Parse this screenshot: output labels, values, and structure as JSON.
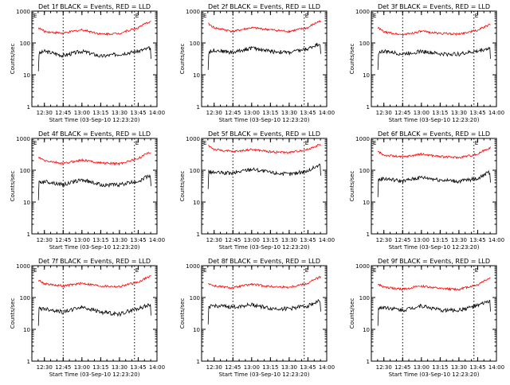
{
  "figure": {
    "x_tick_labels": [
      "12:30",
      "12:45",
      "13:00",
      "13:15",
      "13:30",
      "13:45",
      "14:00"
    ],
    "x_label": "Start Time (03-Sep-10 12:23:20)",
    "y_label": "Counts/sec",
    "y_tick_labels": [
      "1",
      "10",
      "100",
      "1000"
    ],
    "marker_label": "E",
    "colors": {
      "events": "#000000",
      "lld": "#ff0000",
      "axes": "#000000",
      "background": "#ffffff"
    }
  },
  "chart_data": [
    {
      "type": "line",
      "title": "Det 1f BLACK = Events, RED = LLD",
      "xlim": [
        12.333,
        14.0
      ],
      "ylim": [
        1,
        1000
      ],
      "y_scale": "log",
      "markers_x": [
        12.75,
        13.7
      ],
      "series": [
        {
          "name": "Events",
          "color": "#000000",
          "x": [
            12.42,
            12.5,
            12.75,
            13.0,
            13.25,
            13.5,
            13.75,
            13.92
          ],
          "values": [
            45,
            55,
            40,
            55,
            38,
            45,
            55,
            70
          ]
        },
        {
          "name": "LLD",
          "color": "#ff0000",
          "x": [
            12.42,
            12.5,
            12.75,
            13.0,
            13.25,
            13.5,
            13.75,
            13.92
          ],
          "values": [
            300,
            230,
            200,
            260,
            190,
            200,
            300,
            480
          ]
        }
      ]
    },
    {
      "type": "line",
      "title": "Det 2f BLACK = Events, RED = LLD",
      "xlim": [
        12.333,
        14.0
      ],
      "ylim": [
        1,
        1000
      ],
      "y_scale": "log",
      "markers_x": [
        12.75,
        13.7
      ],
      "series": [
        {
          "name": "Events",
          "color": "#000000",
          "x": [
            12.42,
            12.5,
            12.75,
            13.0,
            13.25,
            13.5,
            13.75,
            13.92
          ],
          "values": [
            50,
            60,
            50,
            70,
            55,
            50,
            65,
            100
          ]
        },
        {
          "name": "LLD",
          "color": "#ff0000",
          "x": [
            12.42,
            12.5,
            12.75,
            13.0,
            13.25,
            13.5,
            13.75,
            13.92
          ],
          "values": [
            400,
            300,
            230,
            300,
            260,
            230,
            300,
            500
          ]
        }
      ]
    },
    {
      "type": "line",
      "title": "Det 3f BLACK = Events, RED = LLD",
      "xlim": [
        12.333,
        14.0
      ],
      "ylim": [
        1,
        1000
      ],
      "y_scale": "log",
      "markers_x": [
        12.75,
        13.7
      ],
      "series": [
        {
          "name": "Events",
          "color": "#000000",
          "x": [
            12.42,
            12.5,
            12.75,
            13.0,
            13.25,
            13.5,
            13.75,
            13.92
          ],
          "values": [
            50,
            55,
            45,
            55,
            45,
            45,
            55,
            70
          ]
        },
        {
          "name": "LLD",
          "color": "#ff0000",
          "x": [
            12.42,
            12.5,
            12.75,
            13.0,
            13.25,
            13.5,
            13.75,
            13.92
          ],
          "values": [
            300,
            220,
            180,
            230,
            200,
            190,
            250,
            380
          ]
        }
      ]
    },
    {
      "type": "line",
      "title": "Det 4f BLACK = Events, RED = LLD",
      "xlim": [
        12.333,
        14.0
      ],
      "ylim": [
        1,
        1000
      ],
      "y_scale": "log",
      "markers_x": [
        12.75,
        13.7
      ],
      "series": [
        {
          "name": "Events",
          "color": "#000000",
          "x": [
            12.42,
            12.5,
            12.75,
            13.0,
            13.25,
            13.5,
            13.75,
            13.92
          ],
          "values": [
            40,
            45,
            35,
            50,
            35,
            35,
            45,
            70
          ]
        },
        {
          "name": "LLD",
          "color": "#ff0000",
          "x": [
            12.42,
            12.5,
            12.75,
            13.0,
            13.25,
            13.5,
            13.75,
            13.92
          ],
          "values": [
            250,
            200,
            160,
            210,
            170,
            160,
            230,
            380
          ]
        }
      ]
    },
    {
      "type": "line",
      "title": "Det 5f BLACK = Events, RED = LLD",
      "xlim": [
        12.333,
        14.0
      ],
      "ylim": [
        1,
        1000
      ],
      "y_scale": "log",
      "markers_x": [
        12.75,
        13.7
      ],
      "series": [
        {
          "name": "Events",
          "color": "#000000",
          "x": [
            12.42,
            12.5,
            12.75,
            13.0,
            13.25,
            13.5,
            13.75,
            13.92
          ],
          "values": [
            90,
            85,
            80,
            110,
            85,
            75,
            95,
            150
          ]
        },
        {
          "name": "LLD",
          "color": "#ff0000",
          "x": [
            12.42,
            12.5,
            12.75,
            13.0,
            13.25,
            13.5,
            13.75,
            13.92
          ],
          "values": [
            600,
            450,
            380,
            450,
            380,
            360,
            450,
            650
          ]
        }
      ]
    },
    {
      "type": "line",
      "title": "Det 6f BLACK = Events, RED = LLD",
      "xlim": [
        12.333,
        14.0
      ],
      "ylim": [
        1,
        1000
      ],
      "y_scale": "log",
      "markers_x": [
        12.75,
        13.7
      ],
      "series": [
        {
          "name": "Events",
          "color": "#000000",
          "x": [
            12.42,
            12.5,
            12.75,
            13.0,
            13.25,
            13.5,
            13.75,
            13.92
          ],
          "values": [
            50,
            55,
            45,
            60,
            50,
            45,
            55,
            90
          ]
        },
        {
          "name": "LLD",
          "color": "#ff0000",
          "x": [
            12.42,
            12.5,
            12.75,
            13.0,
            13.25,
            13.5,
            13.75,
            13.92
          ],
          "values": [
            380,
            300,
            260,
            320,
            270,
            250,
            320,
            520
          ]
        }
      ]
    },
    {
      "type": "line",
      "title": "Det 7f BLACK = Events, RED = LLD",
      "xlim": [
        12.333,
        14.0
      ],
      "ylim": [
        1,
        1000
      ],
      "y_scale": "log",
      "markers_x": [
        12.75,
        13.7
      ],
      "series": [
        {
          "name": "Events",
          "color": "#000000",
          "x": [
            12.42,
            12.5,
            12.75,
            13.0,
            13.25,
            13.5,
            13.75,
            13.92
          ],
          "values": [
            45,
            45,
            35,
            50,
            35,
            30,
            45,
            60
          ]
        },
        {
          "name": "LLD",
          "color": "#ff0000",
          "x": [
            12.42,
            12.5,
            12.75,
            13.0,
            13.25,
            13.5,
            13.75,
            13.92
          ],
          "values": [
            350,
            270,
            230,
            280,
            230,
            220,
            300,
            480
          ]
        }
      ]
    },
    {
      "type": "line",
      "title": "Det 8f BLACK = Events, RED = LLD",
      "xlim": [
        12.333,
        14.0
      ],
      "ylim": [
        1,
        1000
      ],
      "y_scale": "log",
      "markers_x": [
        12.75,
        13.7
      ],
      "series": [
        {
          "name": "Events",
          "color": "#000000",
          "x": [
            12.42,
            12.5,
            12.75,
            13.0,
            13.25,
            13.5,
            13.75,
            13.92
          ],
          "values": [
            50,
            55,
            50,
            60,
            45,
            45,
            55,
            80
          ]
        },
        {
          "name": "LLD",
          "color": "#ff0000",
          "x": [
            12.42,
            12.5,
            12.75,
            13.0,
            13.25,
            13.5,
            13.75,
            13.92
          ],
          "values": [
            280,
            230,
            200,
            260,
            220,
            210,
            280,
            450
          ]
        }
      ]
    },
    {
      "type": "line",
      "title": "Det 9f BLACK = Events, RED = LLD",
      "xlim": [
        12.333,
        14.0
      ],
      "ylim": [
        1,
        1000
      ],
      "y_scale": "log",
      "markers_x": [
        12.75,
        13.7
      ],
      "series": [
        {
          "name": "Events",
          "color": "#000000",
          "x": [
            12.42,
            12.5,
            12.75,
            13.0,
            13.25,
            13.5,
            13.75,
            13.92
          ],
          "values": [
            45,
            50,
            40,
            55,
            40,
            40,
            55,
            80
          ]
        },
        {
          "name": "LLD",
          "color": "#ff0000",
          "x": [
            12.42,
            12.5,
            12.75,
            13.0,
            13.25,
            13.5,
            13.75,
            13.92
          ],
          "values": [
            260,
            210,
            180,
            230,
            190,
            180,
            250,
            420
          ]
        }
      ]
    }
  ]
}
